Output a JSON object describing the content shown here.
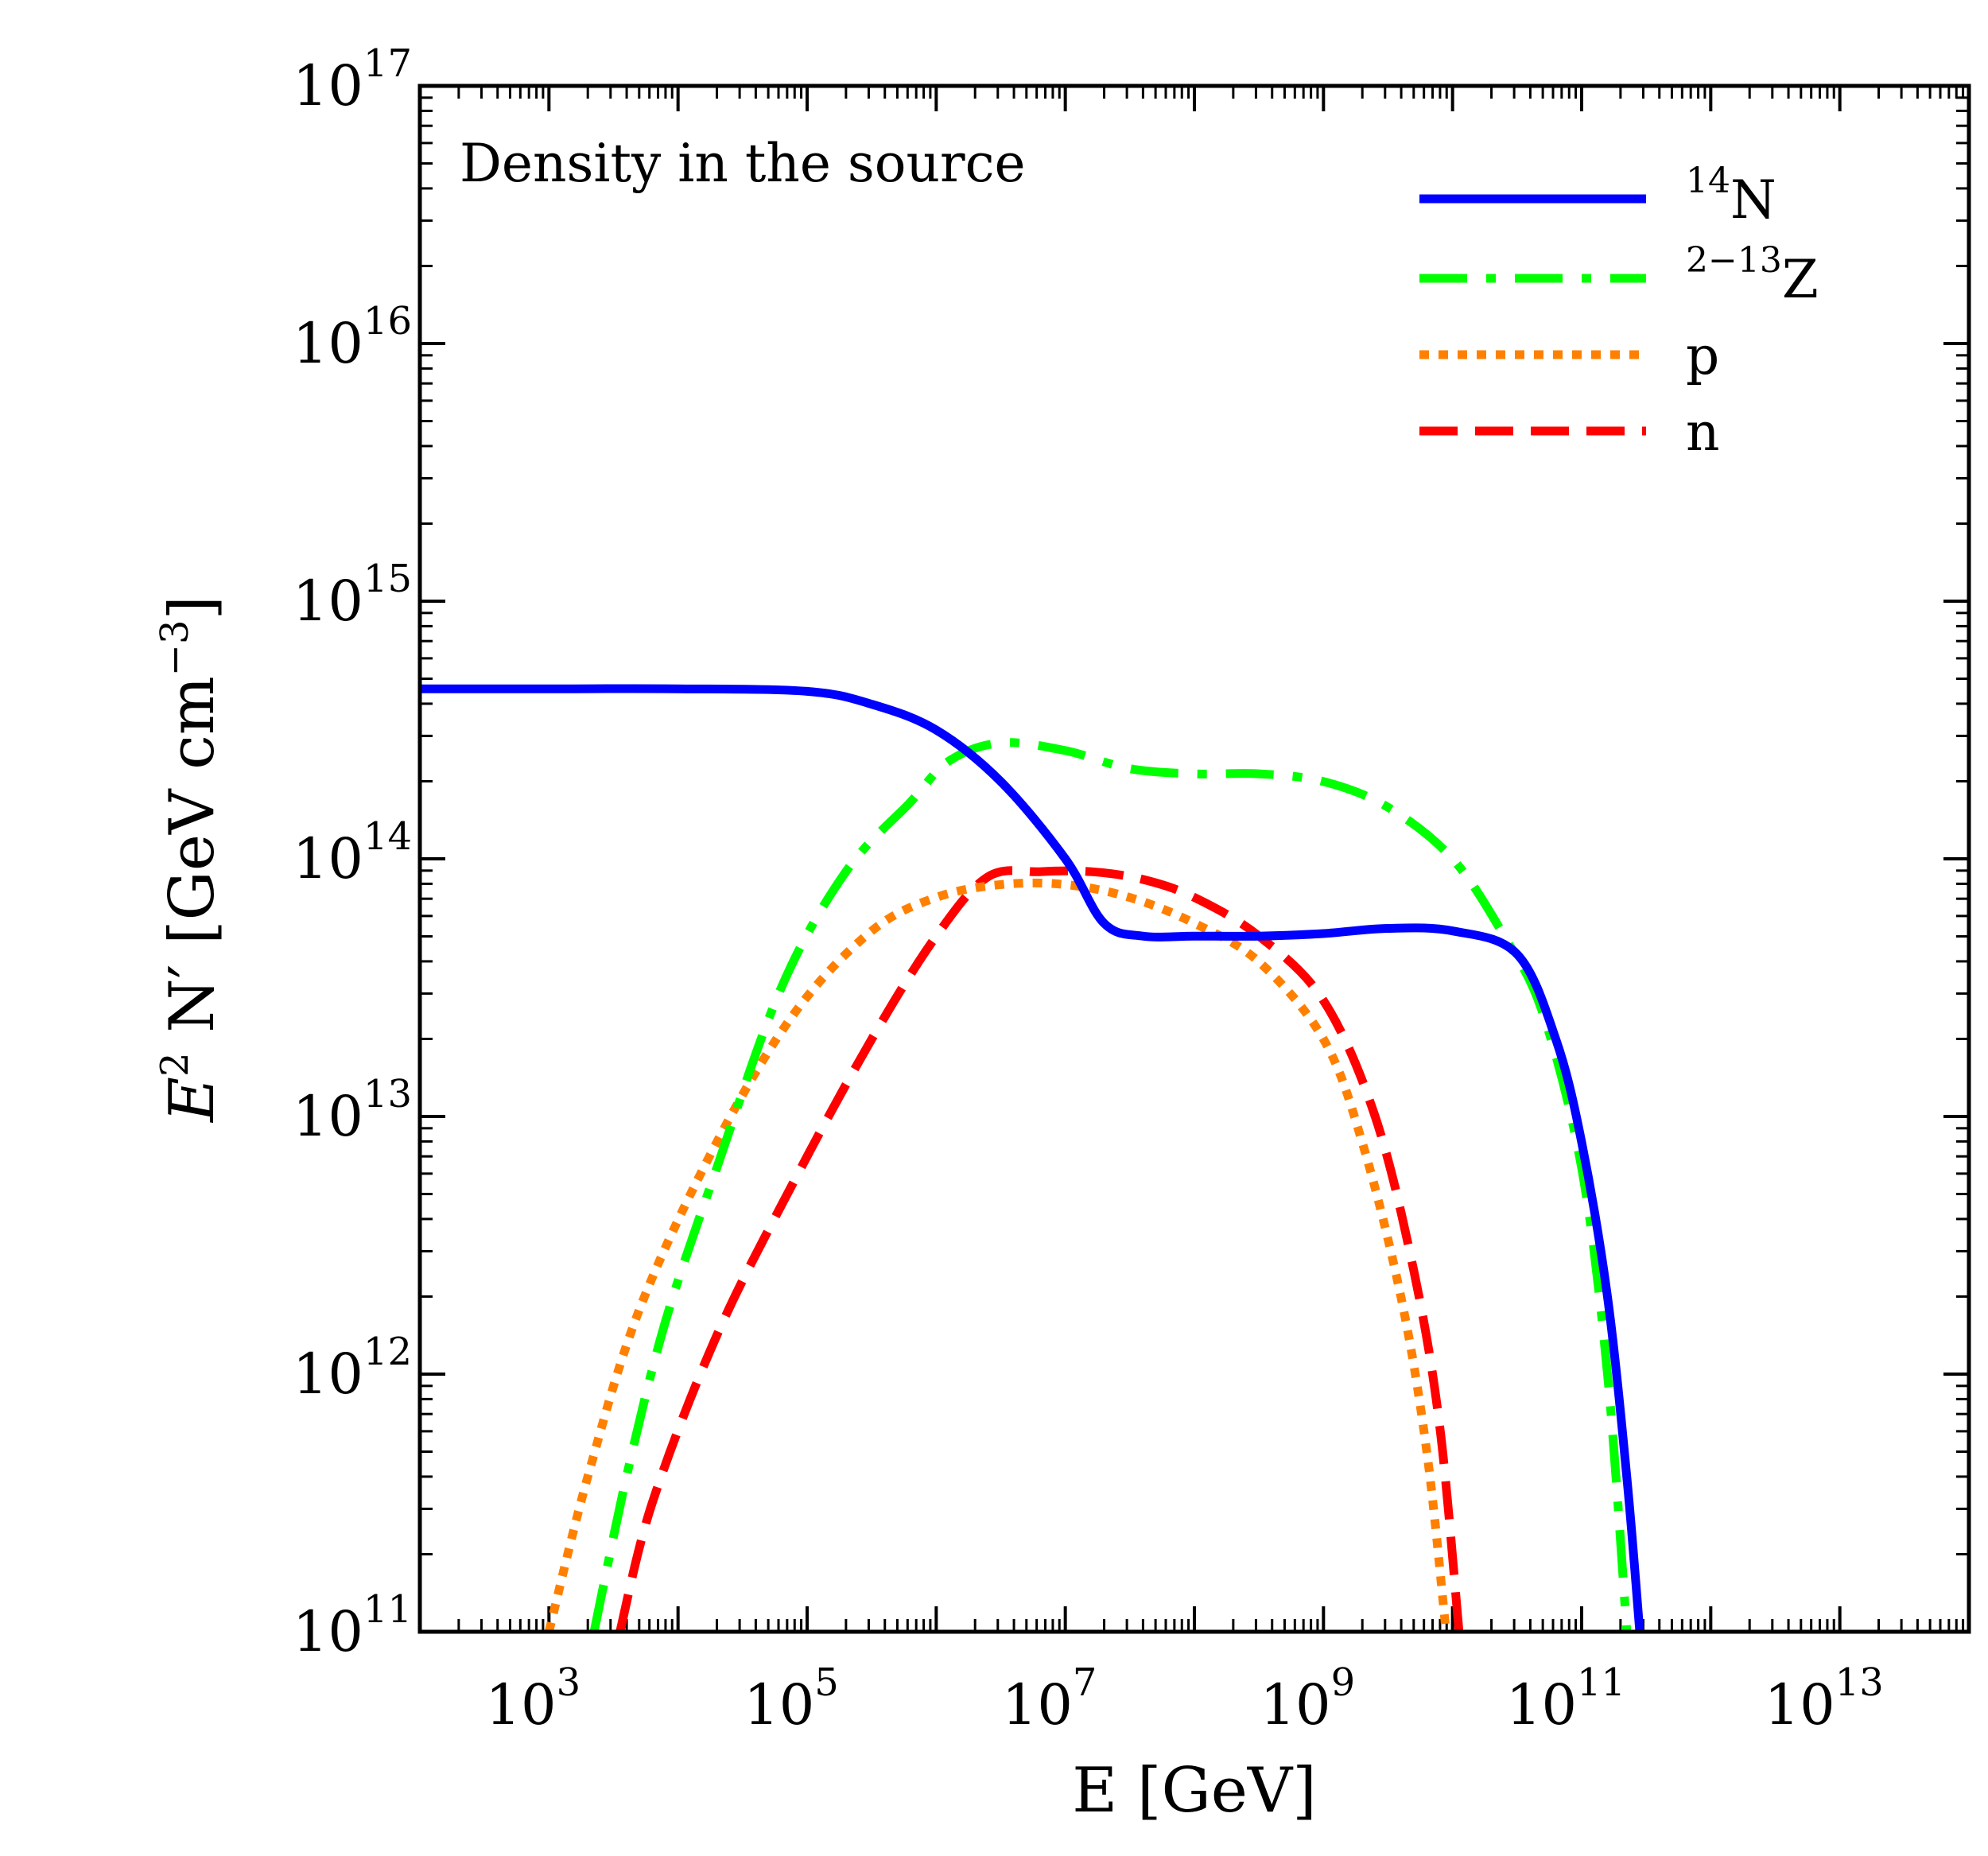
{
  "chart_data": {
    "type": "line",
    "title": "",
    "annotation": "Density in the source",
    "xlabel": "E [GeV]",
    "ylabel": {
      "base": "E",
      "sup": "2",
      "rest": " N′ [GeV cm",
      "unit_sup": "−3",
      "close": "]"
    },
    "xscale": "log",
    "yscale": "log",
    "xlim_log10": [
      2,
      14
    ],
    "ylim_log10": [
      11,
      17
    ],
    "x_ticks": [
      {
        "base": "10",
        "exp": "3",
        "log": 3
      },
      {
        "base": "10",
        "exp": "5",
        "log": 5
      },
      {
        "base": "10",
        "exp": "7",
        "log": 7
      },
      {
        "base": "10",
        "exp": "9",
        "log": 9
      },
      {
        "base": "10",
        "exp": "11",
        "log": 11
      },
      {
        "base": "10",
        "exp": "13",
        "log": 13
      }
    ],
    "y_ticks": [
      {
        "base": "10",
        "exp": "11",
        "log": 11
      },
      {
        "base": "10",
        "exp": "12",
        "log": 12
      },
      {
        "base": "10",
        "exp": "13",
        "log": 13
      },
      {
        "base": "10",
        "exp": "14",
        "log": 14
      },
      {
        "base": "10",
        "exp": "15",
        "log": 15
      },
      {
        "base": "10",
        "exp": "16",
        "log": 16
      },
      {
        "base": "10",
        "exp": "17",
        "log": 17
      }
    ],
    "legend_position": "top-right",
    "series": [
      {
        "name": "14N",
        "sup": "14",
        "label": "N",
        "color": "#0000ff",
        "style": "solid",
        "points_log10": [
          [
            2.0,
            14.66
          ],
          [
            3.0,
            14.66
          ],
          [
            4.0,
            14.66
          ],
          [
            5.0,
            14.65
          ],
          [
            5.5,
            14.6
          ],
          [
            6.0,
            14.5
          ],
          [
            6.5,
            14.3
          ],
          [
            7.0,
            14.0
          ],
          [
            7.3,
            13.75
          ],
          [
            7.6,
            13.7
          ],
          [
            8.0,
            13.7
          ],
          [
            8.5,
            13.7
          ],
          [
            9.0,
            13.71
          ],
          [
            9.5,
            13.73
          ],
          [
            10.0,
            13.72
          ],
          [
            10.5,
            13.63
          ],
          [
            10.8,
            13.3
          ],
          [
            11.0,
            12.9
          ],
          [
            11.2,
            12.3
          ],
          [
            11.35,
            11.6
          ],
          [
            11.45,
            11.0
          ]
        ]
      },
      {
        "name": "2-13Z",
        "sup": "2−13",
        "label": "Z",
        "color": "#00ff00",
        "style": "dashdot",
        "points_log10": [
          [
            3.35,
            11.0
          ],
          [
            3.6,
            11.6
          ],
          [
            3.9,
            12.2
          ],
          [
            4.3,
            12.8
          ],
          [
            4.8,
            13.5
          ],
          [
            5.3,
            13.95
          ],
          [
            5.8,
            14.22
          ],
          [
            6.1,
            14.38
          ],
          [
            6.5,
            14.45
          ],
          [
            7.0,
            14.42
          ],
          [
            7.5,
            14.35
          ],
          [
            8.0,
            14.33
          ],
          [
            8.5,
            14.33
          ],
          [
            9.0,
            14.3
          ],
          [
            9.5,
            14.2
          ],
          [
            10.0,
            14.0
          ],
          [
            10.4,
            13.7
          ],
          [
            10.7,
            13.4
          ],
          [
            11.0,
            12.8
          ],
          [
            11.2,
            12.0
          ],
          [
            11.35,
            11.0
          ]
        ]
      },
      {
        "name": "p",
        "label": "p",
        "color": "#ff8000",
        "style": "dotted",
        "points_log10": [
          [
            3.0,
            11.0
          ],
          [
            3.3,
            11.6
          ],
          [
            3.7,
            12.25
          ],
          [
            4.3,
            12.9
          ],
          [
            4.9,
            13.4
          ],
          [
            5.5,
            13.72
          ],
          [
            6.0,
            13.85
          ],
          [
            6.5,
            13.9
          ],
          [
            7.0,
            13.9
          ],
          [
            7.5,
            13.85
          ],
          [
            8.0,
            13.75
          ],
          [
            8.5,
            13.6
          ],
          [
            9.0,
            13.3
          ],
          [
            9.3,
            12.9
          ],
          [
            9.6,
            12.3
          ],
          [
            9.8,
            11.7
          ],
          [
            9.95,
            11.0
          ]
        ]
      },
      {
        "name": "n",
        "label": "n",
        "color": "#ff0000",
        "style": "dashed",
        "points_log10": [
          [
            3.55,
            11.0
          ],
          [
            3.8,
            11.5
          ],
          [
            4.3,
            12.15
          ],
          [
            4.9,
            12.75
          ],
          [
            5.5,
            13.3
          ],
          [
            6.0,
            13.7
          ],
          [
            6.4,
            13.93
          ],
          [
            6.8,
            13.95
          ],
          [
            7.2,
            13.95
          ],
          [
            7.6,
            13.92
          ],
          [
            8.0,
            13.85
          ],
          [
            8.5,
            13.7
          ],
          [
            9.0,
            13.45
          ],
          [
            9.4,
            13.0
          ],
          [
            9.7,
            12.4
          ],
          [
            9.9,
            11.8
          ],
          [
            10.05,
            11.0
          ]
        ]
      }
    ]
  }
}
